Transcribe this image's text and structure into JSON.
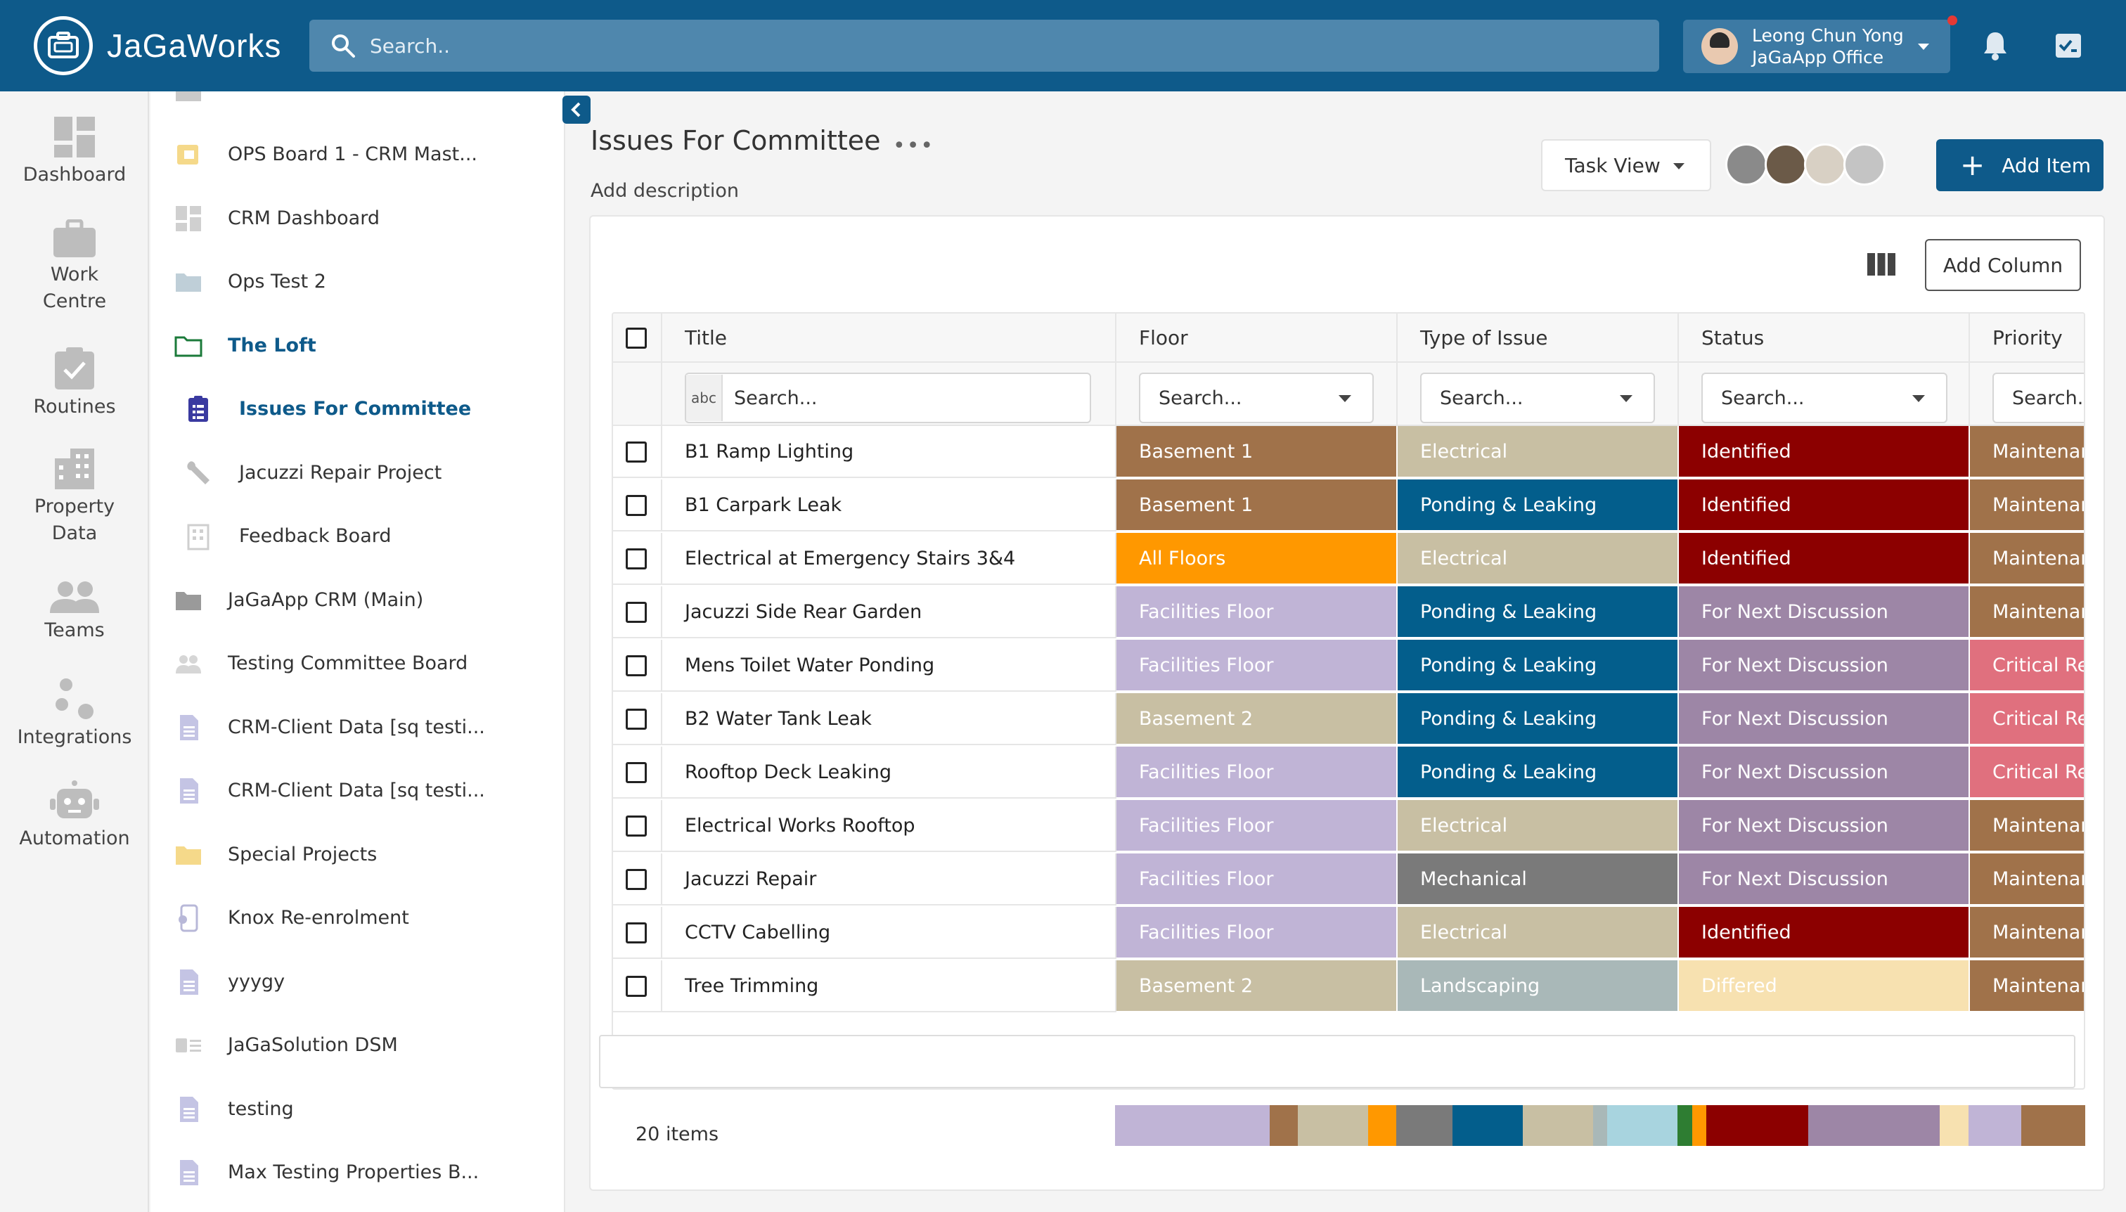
{
  "app": {
    "name": "JaGaWorks",
    "search_placeholder": "Search..",
    "user_name": "Leong Chun Yong",
    "user_org": "JaGaApp Office"
  },
  "rail": [
    {
      "label": "Dashboard",
      "icon": "dashboard-icon"
    },
    {
      "label": "Work Centre",
      "icon": "briefcase-icon"
    },
    {
      "label": "Routines",
      "icon": "clipboard-check-icon"
    },
    {
      "label": "Property Data",
      "icon": "building-icon"
    },
    {
      "label": "Teams",
      "icon": "people-icon"
    },
    {
      "label": "Integrations",
      "icon": "integrations-icon"
    },
    {
      "label": "Automation",
      "icon": "robot-icon"
    }
  ],
  "sidebar": [
    {
      "label": "OPS Board 1 - CRM Mast...",
      "icon": "board-icon",
      "sub": false,
      "active": false
    },
    {
      "label": "CRM Dashboard",
      "icon": "dashboard-icon",
      "sub": false,
      "active": false
    },
    {
      "label": "Ops Test 2",
      "icon": "folder-icon",
      "sub": false,
      "active": false
    },
    {
      "label": "The Loft",
      "icon": "folder-open-icon",
      "sub": false,
      "active": true
    },
    {
      "label": "Issues For Committee",
      "icon": "clipboard-icon",
      "sub": true,
      "active": true
    },
    {
      "label": "Jacuzzi Repair Project",
      "icon": "wrench-icon",
      "sub": true,
      "active": false
    },
    {
      "label": "Feedback Board",
      "icon": "building-icon",
      "sub": true,
      "active": false
    },
    {
      "label": "JaGaApp CRM (Main)",
      "icon": "folder-icon",
      "sub": false,
      "active": false
    },
    {
      "label": "Testing Committee Board",
      "icon": "people-icon",
      "sub": false,
      "active": false
    },
    {
      "label": "CRM-Client Data [sq testi...",
      "icon": "document-icon",
      "sub": false,
      "active": false
    },
    {
      "label": "CRM-Client Data [sq testi...",
      "icon": "document-icon",
      "sub": false,
      "active": false
    },
    {
      "label": "Special Projects",
      "icon": "folder-icon",
      "sub": false,
      "active": false
    },
    {
      "label": "Knox Re-enrolment",
      "icon": "phone-gear-icon",
      "sub": false,
      "active": false
    },
    {
      "label": "yyygy",
      "icon": "document-icon",
      "sub": false,
      "active": false
    },
    {
      "label": "JaGaSolution DSM",
      "icon": "id-card-icon",
      "sub": false,
      "active": false
    },
    {
      "label": "testing",
      "icon": "document-icon",
      "sub": false,
      "active": false
    },
    {
      "label": "Max Testing Properties B...",
      "icon": "document-icon",
      "sub": false,
      "active": false
    }
  ],
  "main": {
    "title": "Issues For Committee",
    "description": "Add description",
    "task_view": "Task View",
    "add_item": "Add Item",
    "add_column": "Add Column",
    "members": [
      "#8a8a8a",
      "#6b5a48",
      "#d8d0c4",
      "#c4c4c4"
    ]
  },
  "table": {
    "columns": [
      "Title",
      "Floor",
      "Type of Issue",
      "Status",
      "Priority"
    ],
    "filter_placeholder": "Search...",
    "abc": "abc",
    "rows": [
      {
        "title": "B1 Ramp Lighting",
        "floor": "Basement 1",
        "type": "Electrical",
        "status": "Identified",
        "priority": "Maintenance"
      },
      {
        "title": "B1 Carpark Leak",
        "floor": "Basement 1",
        "type": "Ponding & Leaking",
        "status": "Identified",
        "priority": "Maintenance"
      },
      {
        "title": "Electrical at Emergency Stairs 3&4",
        "floor": "All Floors",
        "type": "Electrical",
        "status": "Identified",
        "priority": "Maintenance"
      },
      {
        "title": "Jacuzzi Side Rear Garden",
        "floor": "Facilities Floor",
        "type": "Ponding & Leaking",
        "status": "For Next Discussion",
        "priority": "Maintenance"
      },
      {
        "title": "Mens Toilet Water Ponding",
        "floor": "Facilities Floor",
        "type": "Ponding & Leaking",
        "status": "For Next Discussion",
        "priority": "Critical Repair"
      },
      {
        "title": "B2 Water Tank Leak",
        "floor": "Basement 2",
        "type": "Ponding & Leaking",
        "status": "For Next Discussion",
        "priority": "Critical Repair"
      },
      {
        "title": "Rooftop Deck Leaking",
        "floor": "Facilities Floor",
        "type": "Ponding & Leaking",
        "status": "For Next Discussion",
        "priority": "Critical Repair"
      },
      {
        "title": "Electrical Works Rooftop",
        "floor": "Facilities Floor",
        "type": "Electrical",
        "status": "For Next Discussion",
        "priority": "Maintenance"
      },
      {
        "title": "Jacuzzi Repair",
        "floor": "Facilities Floor",
        "type": "Mechanical",
        "status": "For Next Discussion",
        "priority": "Maintenance"
      },
      {
        "title": "CCTV Cabelling",
        "floor": "Facilities Floor",
        "type": "Electrical",
        "status": "Identified",
        "priority": "Maintenance"
      },
      {
        "title": "Tree Trimming",
        "floor": "Basement 2",
        "type": "Landscaping",
        "status": "Differed",
        "priority": "Maintenance"
      }
    ],
    "item_count": "20 items"
  },
  "colors": {
    "Basement 1": {
      "bg": "#a0724a",
      "fg": "#ffffff"
    },
    "Basement 2": {
      "bg": "#c8bfa3",
      "fg": "#ffffff"
    },
    "All Floors": {
      "bg": "#ff9800",
      "fg": "#ffffff"
    },
    "Facilities Floor": {
      "bg": "#c0b4d6",
      "fg": "#ffffff"
    },
    "Electrical": {
      "bg": "#c8bfa3",
      "fg": "#ffffff"
    },
    "Ponding & Leaking": {
      "bg": "#035e8c",
      "fg": "#ffffff"
    },
    "Mechanical": {
      "bg": "#7a7a7a",
      "fg": "#ffffff"
    },
    "Landscaping": {
      "bg": "#a9b8b8",
      "fg": "#ffffff"
    },
    "Identified": {
      "bg": "#8c0000",
      "fg": "#ffffff"
    },
    "For Next Discussion": {
      "bg": "#9d86a6",
      "fg": "#ffffff"
    },
    "Differed": {
      "bg": "#f7e1b0",
      "fg": "#ffffff"
    },
    "Maintenance": {
      "bg": "#a0724a",
      "fg": "#ffffff"
    },
    "Critical Repair": {
      "bg": "#e0707e",
      "fg": "#ffffff"
    }
  },
  "summary": {
    "floor": [
      [
        "#c0b4d6",
        55
      ],
      [
        "#a0724a",
        10
      ],
      [
        "#c8bfa3",
        25
      ],
      [
        "#ff9800",
        10
      ]
    ],
    "type": [
      [
        "#7a7a7a",
        20
      ],
      [
        "#035e8c",
        25
      ],
      [
        "#c8bfa3",
        25
      ],
      [
        "#a9b8b8",
        5
      ],
      [
        "#a8d4df",
        25
      ]
    ],
    "status": [
      [
        "#2e7d32",
        5
      ],
      [
        "#ff9800",
        5
      ],
      [
        "#8c0000",
        35
      ],
      [
        "#9d86a6",
        45
      ],
      [
        "#f7e1b0",
        10
      ]
    ],
    "priority": [
      [
        "#c0b4d6",
        45
      ],
      [
        "#a0724a",
        55
      ]
    ]
  }
}
